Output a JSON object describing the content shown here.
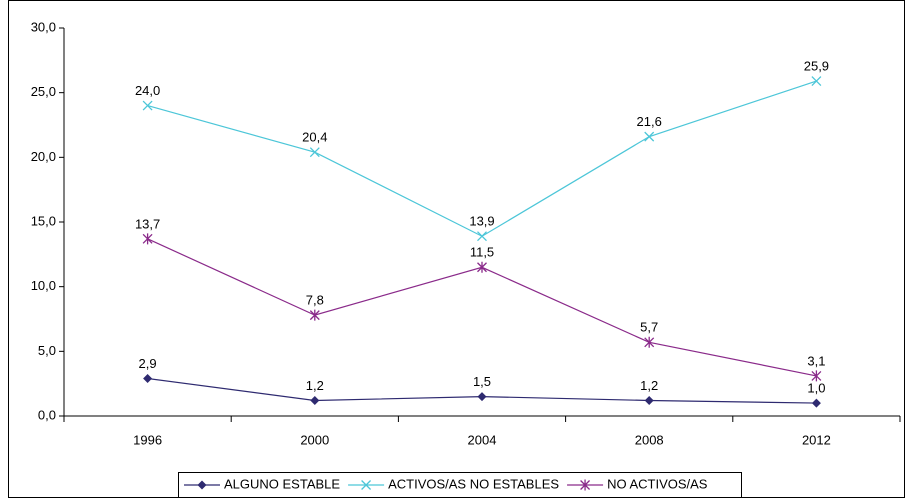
{
  "chart_data": {
    "type": "line",
    "categories": [
      "1996",
      "2000",
      "2004",
      "2008",
      "2012"
    ],
    "series": [
      {
        "name": "ALGUNO ESTABLE",
        "color": "#2e2a70",
        "marker": "diamond",
        "values": [
          2.9,
          1.2,
          1.5,
          1.2,
          1.0
        ],
        "value_labels": [
          "2,9",
          "1,2",
          "1,5",
          "1,2",
          "1,0"
        ]
      },
      {
        "name": "ACTIVOS/AS NO ESTABLES",
        "color": "#4cc6d8",
        "marker": "x",
        "values": [
          24.0,
          20.4,
          13.9,
          21.6,
          25.9
        ],
        "value_labels": [
          "24,0",
          "20,4",
          "13,9",
          "21,6",
          "25,9"
        ]
      },
      {
        "name": "NO ACTIVOS/AS",
        "color": "#8a2a8a",
        "marker": "star",
        "values": [
          13.7,
          7.8,
          11.5,
          5.7,
          3.1
        ],
        "value_labels": [
          "13,7",
          "7,8",
          "11,5",
          "5,7",
          "3,1"
        ]
      }
    ],
    "ylim": [
      0,
      30
    ],
    "yticks": [
      {
        "value": 0,
        "label": "0,0"
      },
      {
        "value": 5,
        "label": "5,0"
      },
      {
        "value": 10,
        "label": "10,0"
      },
      {
        "value": 15,
        "label": "15,0"
      },
      {
        "value": 20,
        "label": "20,0"
      },
      {
        "value": 25,
        "label": "25,0"
      },
      {
        "value": 30,
        "label": "30,0"
      }
    ],
    "grid": false,
    "legend": "bottom"
  }
}
